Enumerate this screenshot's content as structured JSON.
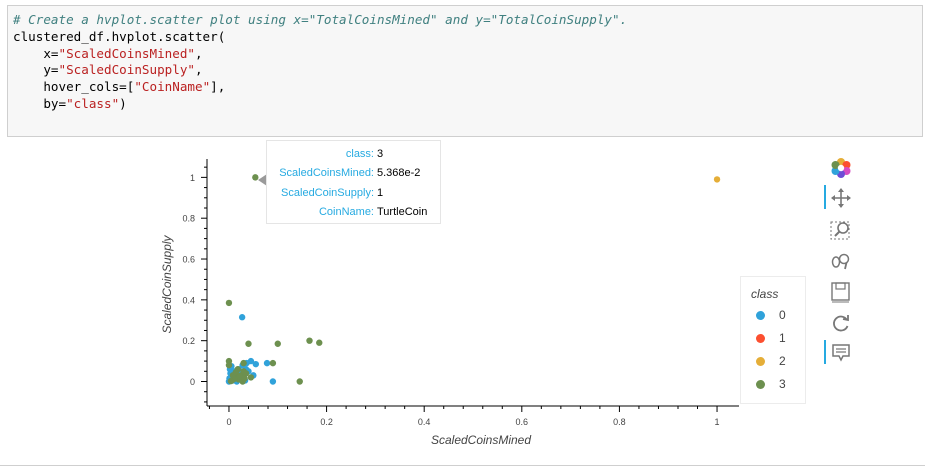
{
  "code_cell": {
    "comment": "# Create a hvplot.scatter plot using x=\"TotalCoinsMined\" and y=\"TotalCoinSupply\".",
    "call": "clustered_df.hvplot.scatter(",
    "arg_x_name": "    x=",
    "arg_x_value": "\"ScaledCoinsMined\"",
    "arg_y_name": "    y=",
    "arg_y_value": "\"ScaledCoinSupply\"",
    "arg_hover_name": "    hover_cols=[",
    "arg_hover_value": "\"CoinName\"",
    "arg_hover_end": "],",
    "arg_by_name": "    by=",
    "arg_by_value": "\"class\"",
    "close": ")"
  },
  "tooltip": {
    "rows": [
      {
        "key": "class:",
        "value": "3"
      },
      {
        "key": "ScaledCoinsMined:",
        "value": "5.368e-2"
      },
      {
        "key": "ScaledCoinSupply:",
        "value": "1"
      },
      {
        "key": "CoinName:",
        "value": "TurtleCoin"
      }
    ]
  },
  "legend": {
    "title": "class",
    "items": [
      {
        "label": "0",
        "color": "#30a2da"
      },
      {
        "label": "1",
        "color": "#fc4f30"
      },
      {
        "label": "2",
        "color": "#e5ae38"
      },
      {
        "label": "3",
        "color": "#6d904f"
      }
    ]
  },
  "toolbar": {
    "tools": [
      {
        "name": "bokeh-logo-icon",
        "active": false
      },
      {
        "name": "pan-tool-icon",
        "active": true
      },
      {
        "name": "box-zoom-tool-icon",
        "active": false
      },
      {
        "name": "wheel-zoom-tool-icon",
        "active": false
      },
      {
        "name": "save-tool-icon",
        "active": false
      },
      {
        "name": "reset-tool-icon",
        "active": false
      },
      {
        "name": "hover-tool-icon",
        "active": true
      }
    ]
  },
  "chart_data": {
    "type": "scatter",
    "title": "",
    "xlabel": "ScaledCoinsMined",
    "ylabel": "ScaledCoinSupply",
    "xlim": [
      -0.045,
      1.045
    ],
    "ylim": [
      -0.12,
      1.09
    ],
    "xticks": [
      0,
      0.2,
      0.4,
      0.6,
      0.8,
      1
    ],
    "xtick_labels": [
      "0",
      "0.2",
      "0.4",
      "0.6",
      "0.8",
      "1"
    ],
    "yticks": [
      0,
      0.2,
      0.4,
      0.6,
      0.8,
      1
    ],
    "ytick_labels": [
      "0",
      "0.2",
      "0.4",
      "0.6",
      "0.8",
      "1"
    ],
    "grid": false,
    "legend_position": "right",
    "series": [
      {
        "name": "0",
        "color": "#30a2da",
        "points": [
          [
            0.0,
            0.0
          ],
          [
            0.002,
            0.005
          ],
          [
            0.004,
            0.012
          ],
          [
            0.006,
            0.02
          ],
          [
            0.008,
            0.03
          ],
          [
            0.003,
            0.04
          ],
          [
            0.002,
            0.06
          ],
          [
            0.005,
            0.075
          ],
          [
            0.01,
            0.05
          ],
          [
            0.012,
            0.02
          ],
          [
            0.015,
            0.01
          ],
          [
            0.018,
            0.035
          ],
          [
            0.02,
            0.06
          ],
          [
            0.022,
            0.015
          ],
          [
            0.025,
            0.045
          ],
          [
            0.028,
            0.08
          ],
          [
            0.03,
            0.025
          ],
          [
            0.033,
            0.005
          ],
          [
            0.036,
            0.09
          ],
          [
            0.04,
            0.05
          ],
          [
            0.045,
            0.1
          ],
          [
            0.05,
            0.03
          ],
          [
            0.055,
            0.085
          ],
          [
            0.078,
            0.09
          ],
          [
            0.09,
            0.0
          ],
          [
            0.027,
            0.315
          ],
          [
            0.008,
            0.005
          ],
          [
            0.016,
            0.0
          ],
          [
            0.001,
            0.015
          ],
          [
            0.035,
            0.06
          ]
        ]
      },
      {
        "name": "1",
        "color": "#fc4f30",
        "points": []
      },
      {
        "name": "2",
        "color": "#e5ae38",
        "points": [
          [
            1.0,
            0.99
          ]
        ]
      },
      {
        "name": "3",
        "color": "#6d904f",
        "points": [
          [
            0.054,
            1.0
          ],
          [
            0.0,
            0.385
          ],
          [
            0.165,
            0.2
          ],
          [
            0.185,
            0.19
          ],
          [
            0.04,
            0.185
          ],
          [
            0.1,
            0.185
          ],
          [
            0.0,
            0.1
          ],
          [
            0.0,
            0.08
          ],
          [
            0.03,
            0.09
          ],
          [
            0.09,
            0.09
          ],
          [
            0.145,
            0.0
          ],
          [
            0.006,
            0.005
          ],
          [
            0.012,
            0.02
          ],
          [
            0.02,
            0.01
          ],
          [
            0.025,
            0.03
          ],
          [
            0.03,
            0.05
          ],
          [
            0.035,
            0.04
          ],
          [
            0.018,
            0.06
          ],
          [
            0.008,
            0.03
          ],
          [
            0.028,
            0.0
          ],
          [
            0.014,
            0.045
          ],
          [
            0.022,
            0.025
          ],
          [
            0.01,
            0.012
          ],
          [
            0.004,
            0.002
          ],
          [
            0.032,
            0.015
          ],
          [
            0.045,
            0.02
          ]
        ]
      }
    ]
  }
}
